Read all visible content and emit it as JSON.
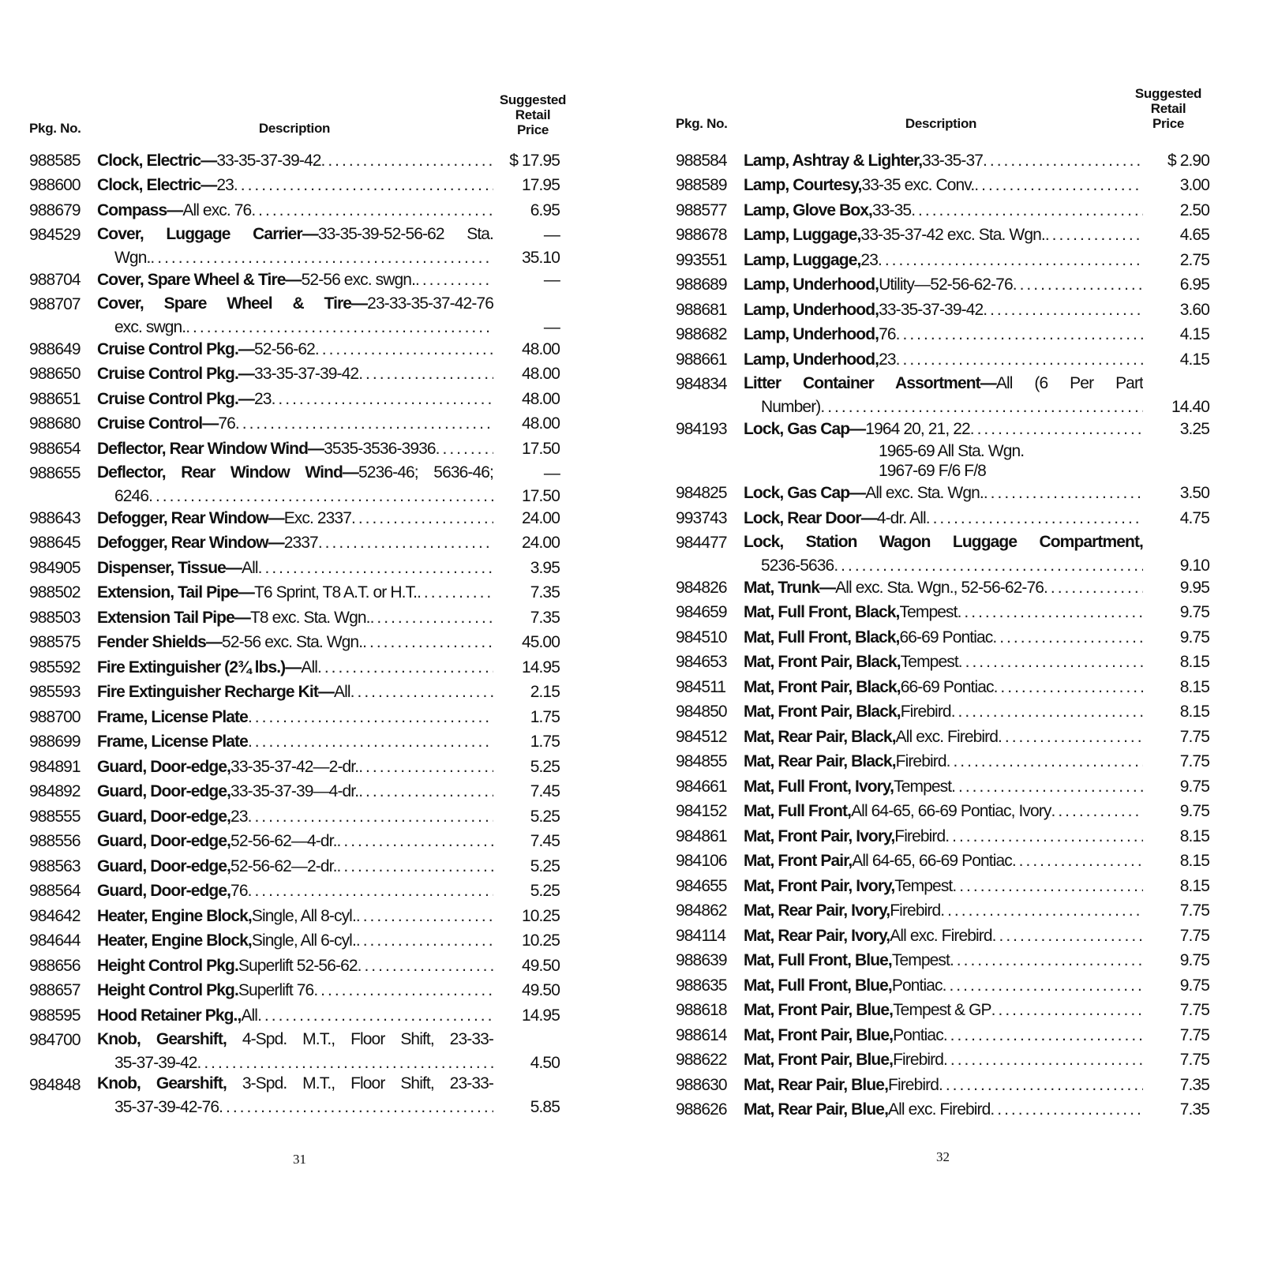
{
  "pages": [
    {
      "headers": {
        "pkg": "Pkg. No.",
        "description": "Description",
        "price_l1": "Suggested",
        "price_l2": "Retail",
        "price_l3": "Price"
      },
      "page_number": "31",
      "items": [
        {
          "pkg": "988585",
          "name": "Clock, Electric—",
          "text": "33-35-37-39-42",
          "price": "$ 17.95"
        },
        {
          "pkg": "988600",
          "name": "Clock, Electric—",
          "text": "23",
          "price": "17.95"
        },
        {
          "pkg": "988679",
          "name": "Compass—",
          "text": "All exc. 76",
          "price": "6.95"
        },
        {
          "pkg": "984529",
          "name": "Cover, Luggage Carrier—",
          "text": "33-35-39-52-56-62 Sta.",
          "price": "—",
          "cont": "Wgn.",
          "cont_price": "35.10"
        },
        {
          "pkg": "988704",
          "name": "Cover, Spare Wheel & Tire—",
          "text": "52-56 exc. swgn.",
          "price": "—"
        },
        {
          "pkg": "988707",
          "name": "Cover, Spare Wheel & Tire—",
          "text": "23-33-35-37-42-76",
          "price": "",
          "cont": "exc. swgn.",
          "cont_price": "—"
        },
        {
          "pkg": "988649",
          "name": "Cruise Control Pkg.—",
          "text": "52-56-62",
          "price": "48.00"
        },
        {
          "pkg": "988650",
          "name": "Cruise Control Pkg.—",
          "text": "33-35-37-39-42",
          "price": "48.00"
        },
        {
          "pkg": "988651",
          "name": "Cruise Control Pkg.—",
          "text": "23",
          "price": "48.00"
        },
        {
          "pkg": "988680",
          "name": "Cruise Control—",
          "text": "76",
          "price": "48.00"
        },
        {
          "pkg": "988654",
          "name": "Deflector, Rear Window Wind—",
          "text": "3535-3536-3936",
          "price": "17.50"
        },
        {
          "pkg": "988655",
          "name": "Deflector, Rear Window Wind—",
          "text": "5236-46; 5636-46;",
          "price": "—",
          "cont": "6246",
          "cont_price": "17.50"
        },
        {
          "pkg": "988643",
          "name": "Defogger, Rear Window—",
          "text": "Exc. 2337",
          "price": "24.00"
        },
        {
          "pkg": "988645",
          "name": "Defogger, Rear Window—",
          "text": "2337",
          "price": "24.00"
        },
        {
          "pkg": "984905",
          "name": "Dispenser, Tissue—",
          "text": "All",
          "price": "3.95"
        },
        {
          "pkg": "988502",
          "name": "Extension, Tail Pipe—",
          "text": "T6 Sprint, T8 A.T. or H.T.",
          "price": "7.35"
        },
        {
          "pkg": "988503",
          "name": "Extension Tail Pipe—",
          "text": "T8 exc. Sta. Wgn.",
          "price": "7.35"
        },
        {
          "pkg": "988575",
          "name": "Fender Shields—",
          "text": "52-56 exc. Sta. Wgn.",
          "price": "45.00"
        },
        {
          "pkg": "985592",
          "name": "Fire Extinguisher (2¾ lbs.)—",
          "text": "All",
          "price": "14.95"
        },
        {
          "pkg": "985593",
          "name": "Fire Extinguisher Recharge Kit—",
          "text": "All",
          "price": "2.15"
        },
        {
          "pkg": "988700",
          "name": "Frame, License Plate",
          "text": "",
          "price": "1.75"
        },
        {
          "pkg": "988699",
          "name": "Frame, License Plate",
          "text": "",
          "price": "1.75"
        },
        {
          "pkg": "984891",
          "name": "Guard, Door-edge, ",
          "text": "33-35-37-42—2-dr.",
          "price": "5.25"
        },
        {
          "pkg": "984892",
          "name": "Guard, Door-edge, ",
          "text": "33-35-37-39—4-dr.",
          "price": "7.45"
        },
        {
          "pkg": "988555",
          "name": "Guard, Door-edge, ",
          "text": "23",
          "price": "5.25"
        },
        {
          "pkg": "988556",
          "name": "Guard, Door-edge, ",
          "text": "52-56-62—4-dr.",
          "price": "7.45"
        },
        {
          "pkg": "988563",
          "name": "Guard, Door-edge, ",
          "text": "52-56-62—2-dr.",
          "price": "5.25"
        },
        {
          "pkg": "988564",
          "name": "Guard, Door-edge, ",
          "text": "76",
          "price": "5.25"
        },
        {
          "pkg": "984642",
          "name": "Heater, Engine Block, ",
          "text": "Single, All 8-cyl.",
          "price": "10.25"
        },
        {
          "pkg": "984644",
          "name": "Heater, Engine Block, ",
          "text": "Single, All 6-cyl.",
          "price": "10.25"
        },
        {
          "pkg": "988656",
          "name": "Height Control Pkg. ",
          "text": "Superlift 52-56-62",
          "price": "49.50"
        },
        {
          "pkg": "988657",
          "name": "Height Control Pkg. ",
          "text": "Superlift 76",
          "price": "49.50"
        },
        {
          "pkg": "988595",
          "name": "Hood Retainer Pkg., ",
          "text": "All",
          "price": "14.95"
        },
        {
          "pkg": "984700",
          "name": "Knob, Gearshift, ",
          "text": "4-Spd. M.T., Floor Shift, 23-33-",
          "price": "",
          "cont": "35-37-39-42",
          "cont_price": "4.50"
        },
        {
          "pkg": "984848",
          "name": "Knob, Gearshift, ",
          "text": "3-Spd. M.T., Floor Shift, 23-33-",
          "price": "",
          "cont": "35-37-39-42-76",
          "cont_price": "5.85"
        }
      ]
    },
    {
      "headers": {
        "pkg": "Pkg. No.",
        "description": "Description",
        "price_l1": "Suggested",
        "price_l2": "Retail",
        "price_l3": "Price"
      },
      "page_number": "32",
      "items": [
        {
          "pkg": "988584",
          "name": "Lamp, Ashtray & Lighter, ",
          "text": "33-35-37",
          "price": "$ 2.90"
        },
        {
          "pkg": "988589",
          "name": "Lamp, Courtesy, ",
          "text": "33-35 exc. Conv.",
          "price": "3.00"
        },
        {
          "pkg": "988577",
          "name": "Lamp, Glove Box, ",
          "text": "33-35",
          "price": "2.50"
        },
        {
          "pkg": "988678",
          "name": "Lamp, Luggage, ",
          "text": "33-35-37-42 exc. Sta. Wgn.",
          "price": "4.65"
        },
        {
          "pkg": "993551",
          "name": "Lamp, Luggage, ",
          "text": "23",
          "price": "2.75"
        },
        {
          "pkg": "988689",
          "name": "Lamp, Underhood, ",
          "text": "Utility—52-56-62-76",
          "price": "6.95"
        },
        {
          "pkg": "988681",
          "name": "Lamp, Underhood, ",
          "text": "33-35-37-39-42",
          "price": "3.60"
        },
        {
          "pkg": "988682",
          "name": "Lamp, Underhood, ",
          "text": "76",
          "price": "4.15"
        },
        {
          "pkg": "988661",
          "name": "Lamp, Underhood, ",
          "text": "23",
          "price": "4.15"
        },
        {
          "pkg": "984834",
          "name": "Litter Container Assortment—",
          "text": "All (6 Per Part",
          "price": "",
          "cont": "Number)",
          "cont_price": "14.40"
        },
        {
          "pkg": "984193",
          "name": "Lock, Gas Cap—",
          "text": "1964 20, 21, 22",
          "price": "3.25",
          "extra": [
            "1965-69 All Sta. Wgn.",
            "1967-69 F/6 F/8"
          ]
        },
        {
          "pkg": "984825",
          "name": "Lock, Gas Cap—",
          "text": "All exc. Sta. Wgn.",
          "price": "3.50"
        },
        {
          "pkg": "993743",
          "name": "Lock, Rear Door—",
          "text": "4-dr. All",
          "price": "4.75"
        },
        {
          "pkg": "984477",
          "name": "Lock, Station Wagon Luggage Compartment,",
          "text": "",
          "price": "",
          "cont": "5236-5636",
          "cont_price": "9.10"
        },
        {
          "pkg": "984826",
          "name": "Mat, Trunk—",
          "text": "All exc. Sta. Wgn., 52-56-62-76",
          "price": "9.95"
        },
        {
          "pkg": "984659",
          "name": "Mat, Full Front, Black, ",
          "text": "Tempest",
          "price": "9.75"
        },
        {
          "pkg": "984510",
          "name": "Mat, Full Front, Black, ",
          "text": "66-69 Pontiac",
          "price": "9.75"
        },
        {
          "pkg": "984653",
          "name": "Mat, Front Pair, Black, ",
          "text": "Tempest",
          "price": "8.15"
        },
        {
          "pkg": "984511",
          "name": "Mat, Front Pair, Black, ",
          "text": "66-69 Pontiac",
          "price": "8.15"
        },
        {
          "pkg": "984850",
          "name": "Mat, Front Pair, Black, ",
          "text": "Firebird",
          "price": "8.15"
        },
        {
          "pkg": "984512",
          "name": "Mat, Rear Pair, Black, ",
          "text": "All exc. Firebird",
          "price": "7.75"
        },
        {
          "pkg": "984855",
          "name": "Mat, Rear Pair, Black, ",
          "text": "Firebird",
          "price": "7.75"
        },
        {
          "pkg": "984661",
          "name": "Mat, Full Front, Ivory, ",
          "text": "Tempest",
          "price": "9.75"
        },
        {
          "pkg": "984152",
          "name": "Mat, Full Front, ",
          "text": "All 64-65, 66-69 Pontiac, Ivory",
          "price": "9.75"
        },
        {
          "pkg": "984861",
          "name": "Mat, Front Pair, Ivory, ",
          "text": "Firebird",
          "price": "8.15"
        },
        {
          "pkg": "984106",
          "name": "Mat, Front Pair, ",
          "text": "All 64-65, 66-69 Pontiac",
          "price": "8.15"
        },
        {
          "pkg": "984655",
          "name": "Mat, Front Pair, Ivory, ",
          "text": "Tempest",
          "price": "8.15"
        },
        {
          "pkg": "984862",
          "name": "Mat, Rear Pair, Ivory, ",
          "text": "Firebird",
          "price": "7.75"
        },
        {
          "pkg": "984114",
          "name": "Mat, Rear Pair, Ivory, ",
          "text": "All exc. Firebird",
          "price": "7.75"
        },
        {
          "pkg": "988639",
          "name": "Mat, Full Front, Blue, ",
          "text": "Tempest",
          "price": "9.75"
        },
        {
          "pkg": "988635",
          "name": "Mat, Full Front, Blue, ",
          "text": "Pontiac",
          "price": "9.75"
        },
        {
          "pkg": "988618",
          "name": "Mat, Front Pair, Blue, ",
          "text": "Tempest & GP",
          "price": "7.75"
        },
        {
          "pkg": "988614",
          "name": "Mat, Front Pair, Blue, ",
          "text": "Pontiac",
          "price": "7.75"
        },
        {
          "pkg": "988622",
          "name": "Mat, Front Pair, Blue, ",
          "text": "Firebird",
          "price": "7.75"
        },
        {
          "pkg": "988630",
          "name": "Mat, Rear Pair, Blue, ",
          "text": "Firebird",
          "price": "7.35"
        },
        {
          "pkg": "988626",
          "name": "Mat, Rear Pair, Blue, ",
          "text": "All exc. Firebird",
          "price": "7.35"
        }
      ]
    }
  ]
}
